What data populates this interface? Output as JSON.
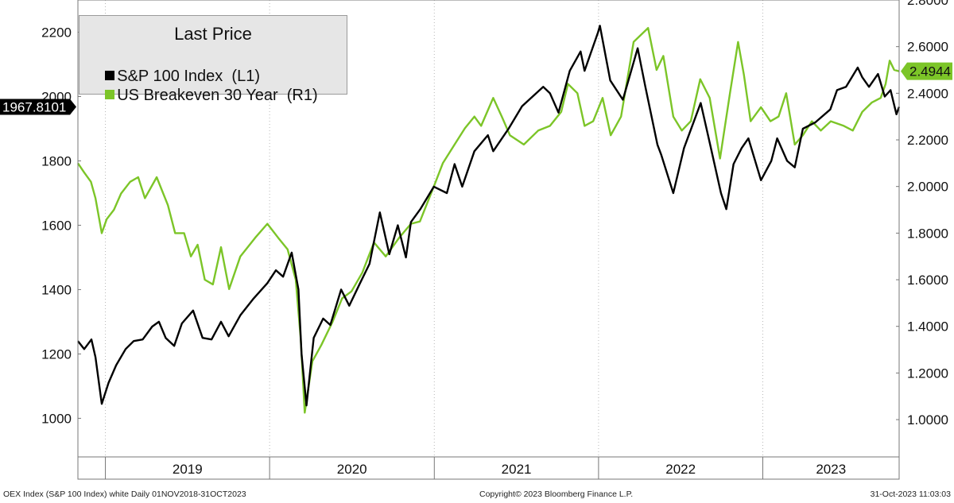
{
  "chart_data": {
    "type": "line",
    "legend": {
      "title": "Last Price",
      "position": "top-left"
    },
    "x_range": [
      "2018-11-01",
      "2023-10-31"
    ],
    "x_year_labels": [
      "2019",
      "2020",
      "2021",
      "2022",
      "2023"
    ],
    "y_left": {
      "ticks": [
        "1000",
        "1200",
        "1400",
        "1600",
        "1800",
        "2000",
        "2200"
      ],
      "range": [
        880,
        2300
      ]
    },
    "y_right": {
      "ticks": [
        "1.0000",
        "1.2000",
        "1.4000",
        "1.6000",
        "1.8000",
        "2.0000",
        "2.2000",
        "2.4000",
        "2.6000",
        "2.8000"
      ],
      "range": [
        0.84,
        2.8
      ]
    },
    "grid": true,
    "series": [
      {
        "name": "S&P 100 Index  (L1)",
        "axis": "left",
        "color": "#000000",
        "last_value": "1967.8101",
        "points": [
          [
            "2018-11-01",
            1240
          ],
          [
            "2018-11-15",
            1215
          ],
          [
            "2018-12-01",
            1245
          ],
          [
            "2018-12-10",
            1190
          ],
          [
            "2018-12-24",
            1045
          ],
          [
            "2019-01-08",
            1110
          ],
          [
            "2019-01-25",
            1165
          ],
          [
            "2019-02-15",
            1215
          ],
          [
            "2019-03-05",
            1240
          ],
          [
            "2019-03-25",
            1245
          ],
          [
            "2019-04-15",
            1285
          ],
          [
            "2019-04-30",
            1300
          ],
          [
            "2019-05-15",
            1250
          ],
          [
            "2019-06-03",
            1225
          ],
          [
            "2019-06-20",
            1295
          ],
          [
            "2019-07-15",
            1335
          ],
          [
            "2019-08-05",
            1250
          ],
          [
            "2019-08-25",
            1245
          ],
          [
            "2019-09-15",
            1300
          ],
          [
            "2019-10-02",
            1255
          ],
          [
            "2019-10-28",
            1320
          ],
          [
            "2019-11-25",
            1370
          ],
          [
            "2019-12-27",
            1420
          ],
          [
            "2020-01-15",
            1460
          ],
          [
            "2020-01-31",
            1440
          ],
          [
            "2020-02-19",
            1515
          ],
          [
            "2020-03-05",
            1400
          ],
          [
            "2020-03-12",
            1200
          ],
          [
            "2020-03-23",
            1040
          ],
          [
            "2020-04-08",
            1250
          ],
          [
            "2020-04-29",
            1310
          ],
          [
            "2020-05-15",
            1290
          ],
          [
            "2020-06-08",
            1400
          ],
          [
            "2020-06-26",
            1350
          ],
          [
            "2020-07-20",
            1420
          ],
          [
            "2020-08-10",
            1480
          ],
          [
            "2020-09-02",
            1640
          ],
          [
            "2020-09-23",
            1510
          ],
          [
            "2020-10-12",
            1600
          ],
          [
            "2020-10-30",
            1500
          ],
          [
            "2020-11-10",
            1610
          ],
          [
            "2020-12-01",
            1650
          ],
          [
            "2020-12-31",
            1720
          ],
          [
            "2021-01-29",
            1700
          ],
          [
            "2021-02-15",
            1790
          ],
          [
            "2021-03-04",
            1720
          ],
          [
            "2021-03-31",
            1830
          ],
          [
            "2021-04-30",
            1880
          ],
          [
            "2021-05-12",
            1830
          ],
          [
            "2021-06-15",
            1900
          ],
          [
            "2021-07-15",
            1970
          ],
          [
            "2021-08-31",
            2030
          ],
          [
            "2021-09-15",
            2010
          ],
          [
            "2021-10-04",
            1950
          ],
          [
            "2021-10-29",
            2080
          ],
          [
            "2021-11-22",
            2140
          ],
          [
            "2021-12-01",
            2080
          ],
          [
            "2021-12-31",
            2200
          ],
          [
            "2022-01-04",
            2220
          ],
          [
            "2022-01-27",
            2050
          ],
          [
            "2022-02-24",
            1990
          ],
          [
            "2022-03-29",
            2150
          ],
          [
            "2022-04-15",
            2030
          ],
          [
            "2022-05-12",
            1850
          ],
          [
            "2022-05-20",
            1820
          ],
          [
            "2022-06-16",
            1700
          ],
          [
            "2022-07-10",
            1840
          ],
          [
            "2022-08-16",
            1980
          ],
          [
            "2022-09-06",
            1850
          ],
          [
            "2022-09-30",
            1700
          ],
          [
            "2022-10-12",
            1650
          ],
          [
            "2022-10-28",
            1790
          ],
          [
            "2022-11-15",
            1840
          ],
          [
            "2022-11-30",
            1870
          ],
          [
            "2022-12-28",
            1740
          ],
          [
            "2023-01-20",
            1800
          ],
          [
            "2023-02-02",
            1870
          ],
          [
            "2023-02-24",
            1800
          ],
          [
            "2023-03-13",
            1780
          ],
          [
            "2023-03-31",
            1900
          ],
          [
            "2023-04-28",
            1920
          ],
          [
            "2023-05-31",
            1960
          ],
          [
            "2023-06-15",
            2020
          ],
          [
            "2023-07-05",
            2030
          ],
          [
            "2023-07-31",
            2090
          ],
          [
            "2023-08-10",
            2060
          ],
          [
            "2023-08-25",
            2030
          ],
          [
            "2023-09-14",
            2070
          ],
          [
            "2023-09-29",
            2000
          ],
          [
            "2023-10-12",
            2020
          ],
          [
            "2023-10-25",
            1945
          ],
          [
            "2023-10-31",
            1967.8101
          ]
        ]
      },
      {
        "name": "US Breakeven 30 Year  (R1)",
        "axis": "right",
        "color": "#7cc528",
        "last_value": "2.4944",
        "points": [
          [
            "2018-11-01",
            2.1
          ],
          [
            "2018-11-15",
            2.06
          ],
          [
            "2018-11-30",
            2.02
          ],
          [
            "2018-12-10",
            1.95
          ],
          [
            "2018-12-24",
            1.8
          ],
          [
            "2019-01-04",
            1.86
          ],
          [
            "2019-01-20",
            1.9
          ],
          [
            "2019-02-05",
            1.97
          ],
          [
            "2019-02-25",
            2.02
          ],
          [
            "2019-03-15",
            2.04
          ],
          [
            "2019-03-30",
            1.95
          ],
          [
            "2019-04-25",
            2.04
          ],
          [
            "2019-05-20",
            1.92
          ],
          [
            "2019-06-05",
            1.8
          ],
          [
            "2019-06-25",
            1.8
          ],
          [
            "2019-07-10",
            1.7
          ],
          [
            "2019-07-25",
            1.75
          ],
          [
            "2019-08-10",
            1.6
          ],
          [
            "2019-08-28",
            1.58
          ],
          [
            "2019-09-15",
            1.74
          ],
          [
            "2019-10-03",
            1.56
          ],
          [
            "2019-10-28",
            1.7
          ],
          [
            "2019-11-30",
            1.78
          ],
          [
            "2019-12-27",
            1.84
          ],
          [
            "2020-01-20",
            1.78
          ],
          [
            "2020-02-10",
            1.73
          ],
          [
            "2020-02-28",
            1.6
          ],
          [
            "2020-03-10",
            1.35
          ],
          [
            "2020-03-19",
            1.03
          ],
          [
            "2020-04-05",
            1.25
          ],
          [
            "2020-04-25",
            1.32
          ],
          [
            "2020-05-20",
            1.42
          ],
          [
            "2020-06-10",
            1.52
          ],
          [
            "2020-07-01",
            1.55
          ],
          [
            "2020-07-25",
            1.63
          ],
          [
            "2020-08-20",
            1.76
          ],
          [
            "2020-09-15",
            1.7
          ],
          [
            "2020-10-15",
            1.78
          ],
          [
            "2020-11-10",
            1.84
          ],
          [
            "2020-11-30",
            1.85
          ],
          [
            "2020-12-31",
            2.0
          ],
          [
            "2021-01-20",
            2.1
          ],
          [
            "2021-02-15",
            2.18
          ],
          [
            "2021-03-10",
            2.25
          ],
          [
            "2021-03-31",
            2.3
          ],
          [
            "2021-04-15",
            2.26
          ],
          [
            "2021-05-12",
            2.38
          ],
          [
            "2021-05-31",
            2.3
          ],
          [
            "2021-06-18",
            2.22
          ],
          [
            "2021-07-19",
            2.18
          ],
          [
            "2021-08-20",
            2.24
          ],
          [
            "2021-09-15",
            2.26
          ],
          [
            "2021-10-10",
            2.32
          ],
          [
            "2021-10-25",
            2.44
          ],
          [
            "2021-11-15",
            2.4
          ],
          [
            "2021-12-01",
            2.26
          ],
          [
            "2021-12-20",
            2.28
          ],
          [
            "2022-01-10",
            2.38
          ],
          [
            "2022-01-28",
            2.22
          ],
          [
            "2022-02-20",
            2.3
          ],
          [
            "2022-03-20",
            2.62
          ],
          [
            "2022-04-21",
            2.68
          ],
          [
            "2022-05-10",
            2.5
          ],
          [
            "2022-05-25",
            2.56
          ],
          [
            "2022-06-16",
            2.3
          ],
          [
            "2022-07-05",
            2.24
          ],
          [
            "2022-07-25",
            2.28
          ],
          [
            "2022-08-15",
            2.46
          ],
          [
            "2022-09-05",
            2.38
          ],
          [
            "2022-09-28",
            2.12
          ],
          [
            "2022-10-20",
            2.4
          ],
          [
            "2022-11-07",
            2.62
          ],
          [
            "2022-11-20",
            2.48
          ],
          [
            "2022-12-05",
            2.28
          ],
          [
            "2022-12-28",
            2.34
          ],
          [
            "2023-01-18",
            2.28
          ],
          [
            "2023-02-05",
            2.3
          ],
          [
            "2023-02-22",
            2.4
          ],
          [
            "2023-03-13",
            2.18
          ],
          [
            "2023-03-31",
            2.22
          ],
          [
            "2023-04-20",
            2.28
          ],
          [
            "2023-05-10",
            2.24
          ],
          [
            "2023-06-01",
            2.28
          ],
          [
            "2023-06-30",
            2.26
          ],
          [
            "2023-07-20",
            2.24
          ],
          [
            "2023-08-10",
            2.32
          ],
          [
            "2023-08-31",
            2.36
          ],
          [
            "2023-09-20",
            2.38
          ],
          [
            "2023-10-01",
            2.44
          ],
          [
            "2023-10-10",
            2.54
          ],
          [
            "2023-10-20",
            2.5
          ],
          [
            "2023-10-31",
            2.4944
          ]
        ]
      }
    ]
  },
  "footer": {
    "left": "OEX Index (S&P 100 Index) white  Daily 01NOV2018-31OCT2023",
    "center": "Copyright© 2023 Bloomberg Finance L.P.",
    "right": "31-Oct-2023 11:03:03"
  }
}
